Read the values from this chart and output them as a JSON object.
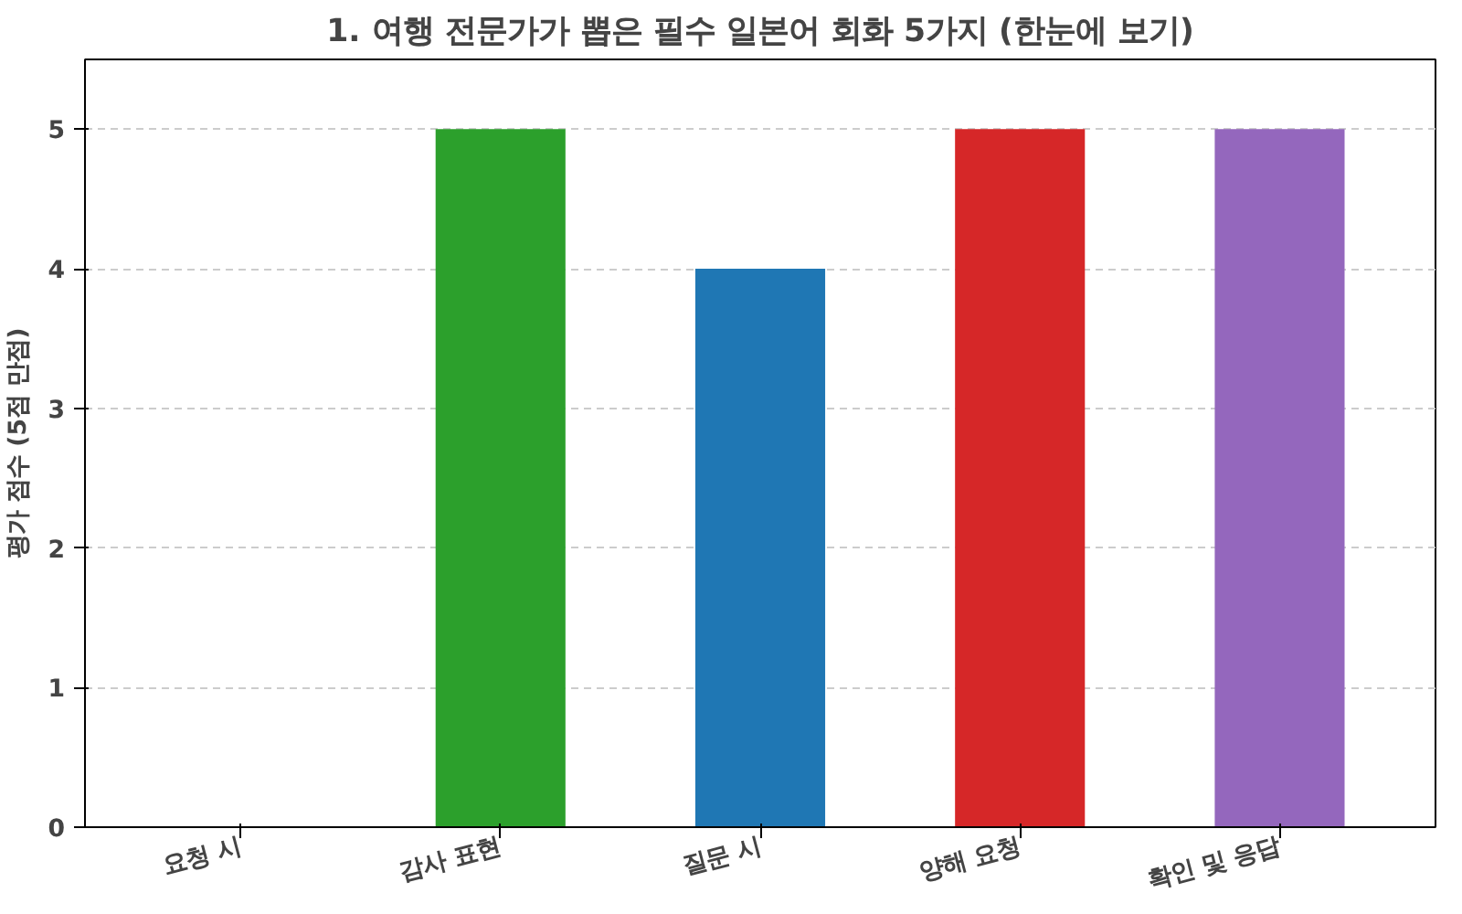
{
  "chart_data": {
    "type": "bar",
    "title": "1. 여행 전문가가 뽑은 필수 일본어 회화 5가지 (한눈에 보기)",
    "ylabel": "평가 점수 (5점 만점)",
    "categories": [
      "요청 시",
      "감사 표현",
      "질문 시",
      "양해 요청",
      "확인 및 응답"
    ],
    "values": [
      0,
      5,
      4,
      5,
      5
    ],
    "colors": [
      "#ff7f0e",
      "#2ca02c",
      "#1f77b4",
      "#d62728",
      "#9467bd"
    ],
    "ylim": [
      0,
      5.5
    ],
    "yticks": [
      0,
      1,
      2,
      3,
      4,
      5
    ],
    "grid": "y"
  }
}
